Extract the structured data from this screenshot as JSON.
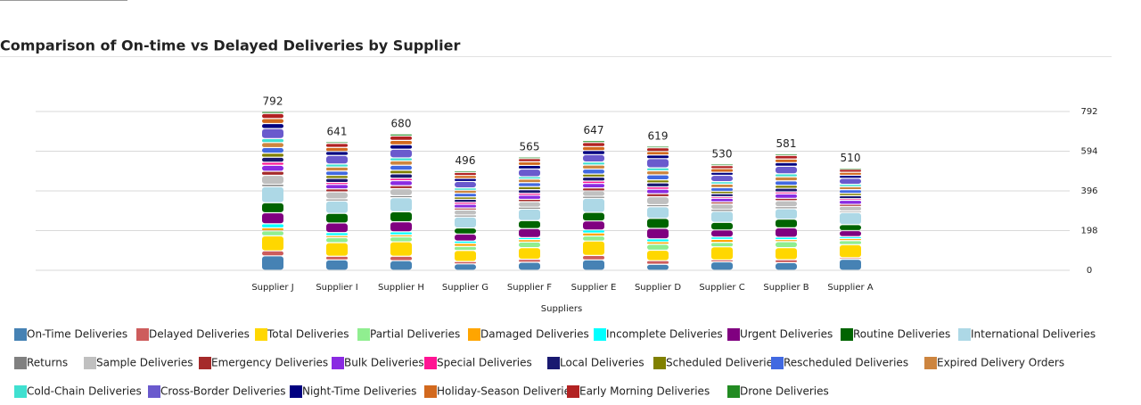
{
  "chart_data": {
    "type": "stacked_bar",
    "title": "Comparison of On-time vs Delayed Deliveries by Supplier",
    "x_label": "Suppliers",
    "categories": [
      "Supplier J",
      "Supplier I",
      "Supplier H",
      "Supplier G",
      "Supplier F",
      "Supplier E",
      "Supplier D",
      "Supplier C",
      "Supplier B",
      "Supplier A"
    ],
    "totals": [
      792,
      641,
      680,
      496,
      565,
      647,
      619,
      530,
      581,
      510
    ],
    "ylim": [
      0,
      792
    ],
    "yticks": [
      0,
      198,
      396,
      594,
      792
    ],
    "grid": true,
    "series": [
      {
        "name": "On-Time Deliveries",
        "color": "#4682b4",
        "values": [
          72,
          52,
          48,
          32,
          40,
          52,
          30,
          42,
          38,
          55
        ]
      },
      {
        "name": "Delayed Deliveries",
        "color": "#cd5c5c",
        "values": [
          25,
          18,
          22,
          12,
          15,
          22,
          18,
          10,
          15,
          8
        ]
      },
      {
        "name": "Total Deliveries",
        "color": "#ffd700",
        "values": [
          75,
          68,
          72,
          55,
          58,
          72,
          52,
          65,
          60,
          65
        ]
      },
      {
        "name": "Partial Deliveries",
        "color": "#90ee90",
        "values": [
          25,
          25,
          25,
          20,
          28,
          25,
          30,
          22,
          30,
          20
        ]
      },
      {
        "name": "Damaged Deliveries",
        "color": "#ffa500",
        "values": [
          15,
          10,
          10,
          15,
          12,
          15,
          12,
          15,
          10,
          10
        ]
      },
      {
        "name": "Incomplete Deliveries",
        "color": "#00ffff",
        "values": [
          20,
          15,
          15,
          12,
          10,
          15,
          15,
          12,
          12,
          10
        ]
      },
      {
        "name": "Urgent Deliveries",
        "color": "#800080",
        "values": [
          55,
          48,
          50,
          35,
          45,
          45,
          52,
          35,
          47,
          30
        ]
      },
      {
        "name": "Routine Deliveries",
        "color": "#006400",
        "values": [
          50,
          48,
          50,
          30,
          40,
          43,
          50,
          38,
          43,
          30
        ]
      },
      {
        "name": "International Deliveries",
        "color": "#add8e6",
        "values": [
          80,
          62,
          70,
          55,
          57,
          70,
          58,
          55,
          52,
          60
        ]
      },
      {
        "name": "Returns",
        "color": "#808080",
        "values": [
          12,
          10,
          10,
          10,
          10,
          10,
          10,
          10,
          10,
          8
        ]
      },
      {
        "name": "Sample Deliveries",
        "color": "#c0c0c0",
        "values": [
          45,
          35,
          35,
          25,
          27,
          27,
          40,
          27,
          30,
          23
        ]
      },
      {
        "name": "Emergency Deliveries",
        "color": "#a52a2a",
        "values": [
          20,
          15,
          15,
          10,
          12,
          15,
          15,
          10,
          12,
          10
        ]
      },
      {
        "name": "Bulk Deliveries",
        "color": "#8a2be2",
        "values": [
          30,
          22,
          25,
          18,
          20,
          22,
          22,
          18,
          22,
          20
        ]
      },
      {
        "name": "Special Deliveries",
        "color": "#ff1493",
        "values": [
          15,
          10,
          12,
          10,
          10,
          12,
          12,
          8,
          10,
          8
        ]
      },
      {
        "name": "Local Deliveries",
        "color": "#191970",
        "values": [
          25,
          20,
          22,
          15,
          18,
          20,
          20,
          15,
          18,
          15
        ]
      },
      {
        "name": "Scheduled Deliveries",
        "color": "#808000",
        "values": [
          20,
          15,
          18,
          12,
          15,
          15,
          15,
          12,
          15,
          12
        ]
      },
      {
        "name": "Rescheduled Deliveries",
        "color": "#4169e1",
        "values": [
          28,
          22,
          25,
          18,
          20,
          25,
          25,
          18,
          22,
          18
        ]
      },
      {
        "name": "Expired Delivery Orders",
        "color": "#cd853f",
        "values": [
          25,
          20,
          22,
          15,
          18,
          20,
          20,
          18,
          20,
          15
        ]
      },
      {
        "name": "Cold-Chain Deliveries",
        "color": "#40e0d0",
        "values": [
          20,
          15,
          15,
          12,
          12,
          15,
          15,
          12,
          15,
          12
        ]
      },
      {
        "name": "Cross-Border Deliveries",
        "color": "#6a5acd",
        "values": [
          50,
          43,
          43,
          32,
          38,
          37,
          46,
          32,
          38,
          30
        ]
      },
      {
        "name": "Night-Time Deliveries",
        "color": "#000080",
        "values": [
          25,
          20,
          22,
          15,
          18,
          20,
          18,
          15,
          18,
          15
        ]
      },
      {
        "name": "Holiday-Season Deliveries",
        "color": "#d2691e",
        "values": [
          25,
          20,
          22,
          15,
          18,
          20,
          18,
          18,
          18,
          15
        ]
      },
      {
        "name": "Early Morning Deliveries",
        "color": "#b22222",
        "values": [
          25,
          20,
          22,
          15,
          16,
          20,
          18,
          15,
          18,
          15
        ]
      },
      {
        "name": "Drone Deliveries",
        "color": "#228b22",
        "values": [
          10,
          8,
          10,
          8,
          8,
          10,
          8,
          8,
          8,
          6
        ]
      }
    ]
  }
}
